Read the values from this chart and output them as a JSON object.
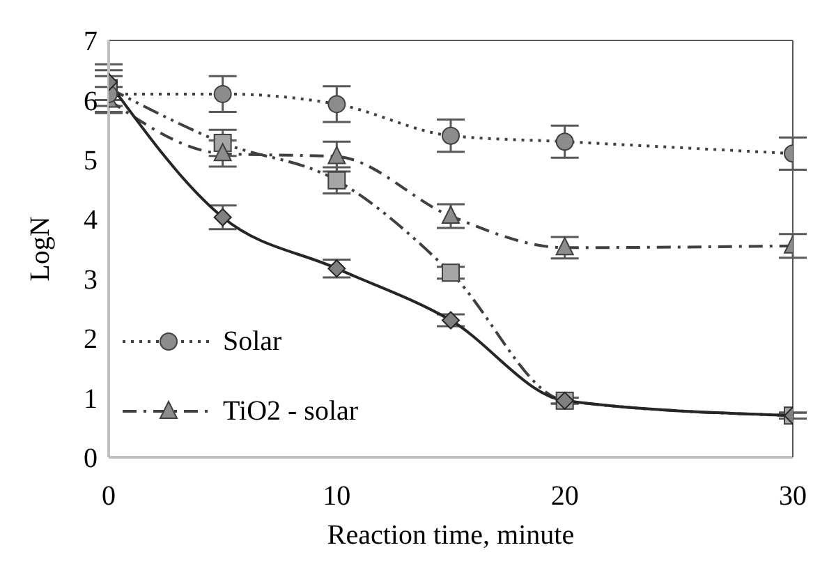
{
  "chart_data": {
    "type": "line",
    "xlabel": "Reaction time, minute",
    "ylabel": "LogN",
    "x": [
      0,
      5,
      10,
      15,
      20,
      30
    ],
    "xlim": [
      0,
      30
    ],
    "xticks": [
      0,
      10,
      20,
      30
    ],
    "ylim": [
      0,
      7
    ],
    "yticks": [
      0,
      1,
      2,
      3,
      4,
      5,
      6,
      7
    ],
    "grid": false,
    "legend": "bottom left",
    "series": [
      {
        "name": "Solar",
        "color": "#404040",
        "marker": "circle",
        "line_style": "dotted",
        "values": [
          6.1,
          6.1,
          5.93,
          5.4,
          5.3,
          5.1
        ],
        "errors": [
          0.3,
          0.3,
          0.3,
          0.27,
          0.27,
          0.27
        ]
      },
      {
        "name": "TiO2 - solar",
        "color": "#404040",
        "marker": "triangle",
        "line_style": "dashdot",
        "values": [
          6.0,
          5.1,
          5.05,
          4.05,
          3.52,
          3.55
        ],
        "errors": [
          0.22,
          0.22,
          0.25,
          0.2,
          0.18,
          0.2
        ]
      },
      {
        "color": "#404040",
        "marker": "square",
        "line_style": "dashdotdot",
        "values": [
          6.2,
          5.28,
          4.65,
          3.1,
          0.95,
          0.7
        ],
        "errors": [
          0.3,
          0.22,
          0.22,
          0.1,
          0.05,
          0.05
        ]
      },
      {
        "color": "#262626",
        "marker": "diamond",
        "line_style": "solid",
        "values": [
          6.3,
          4.03,
          3.17,
          2.3,
          0.95,
          0.7
        ],
        "errors": [
          0.3,
          0.2,
          0.15,
          0.1,
          0.05,
          0.05
        ]
      }
    ]
  }
}
